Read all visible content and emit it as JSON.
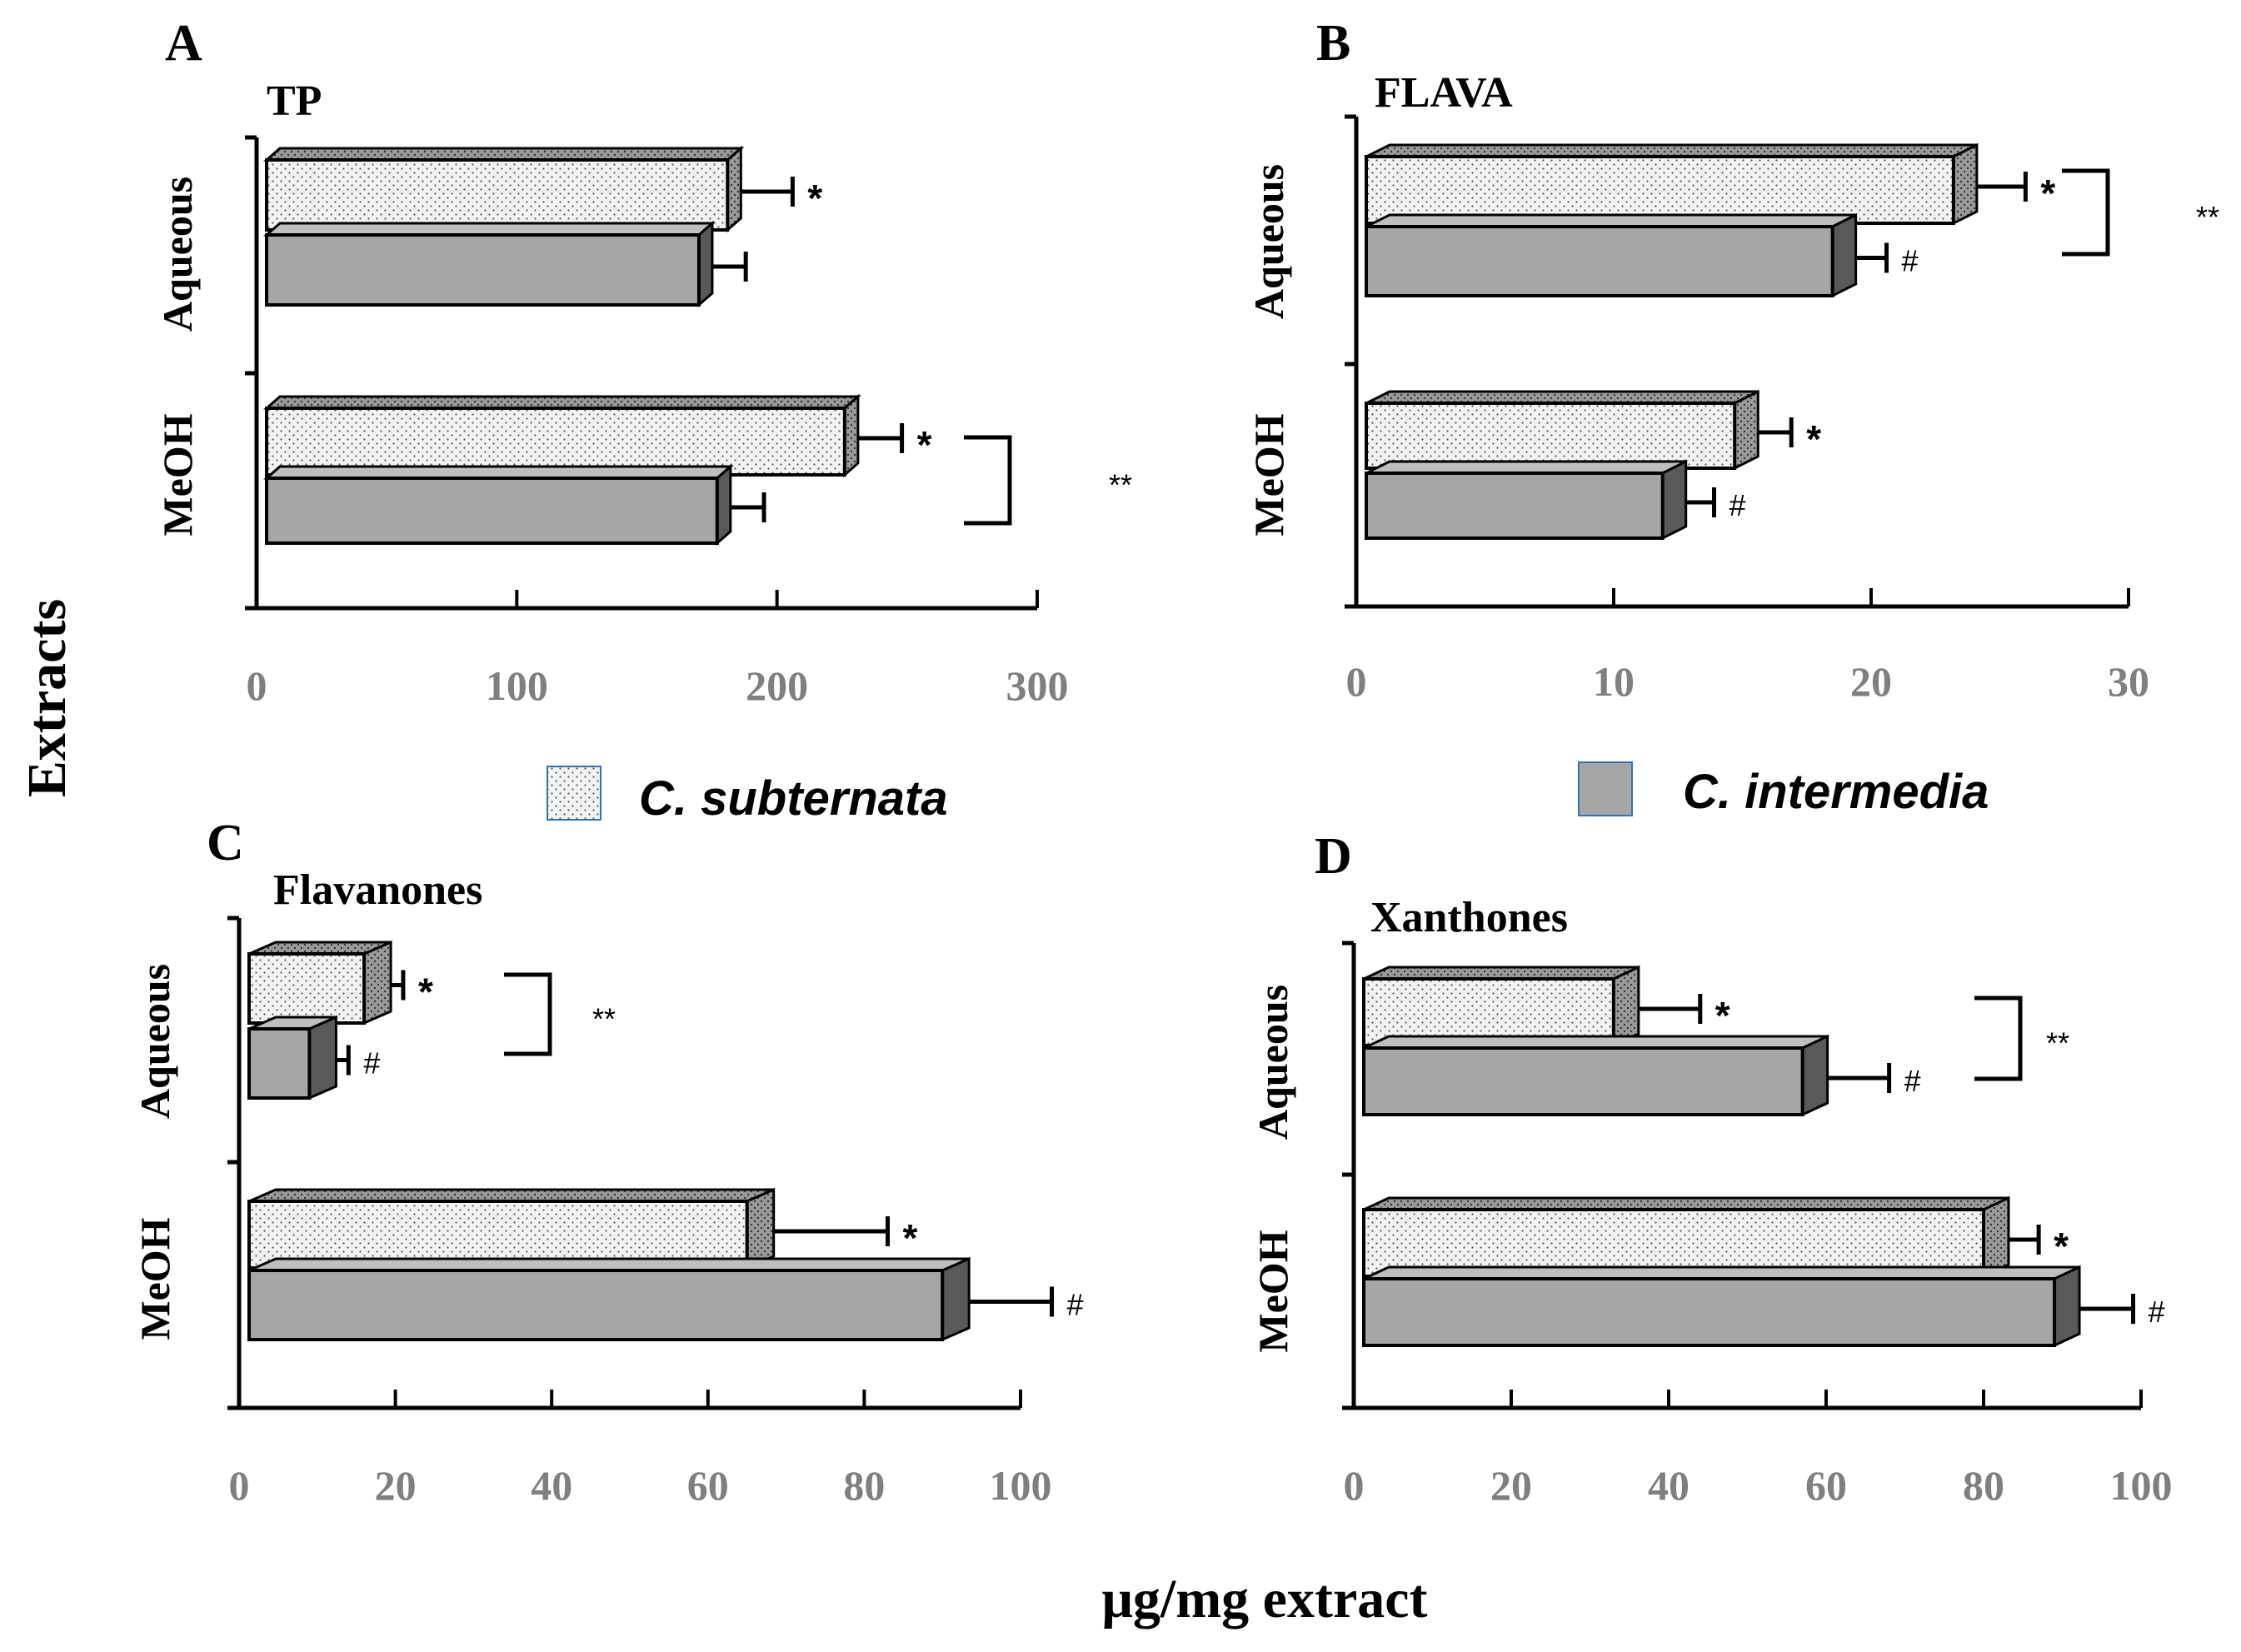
{
  "figure": {
    "y_axis_label": "Extracts",
    "x_axis_label": "μg/mg extract"
  },
  "legend": {
    "items": [
      {
        "name": "C. subternata",
        "pattern": "dotted",
        "color": "#f2f2f2"
      },
      {
        "name": "C. intermedia",
        "pattern": "solid",
        "color": "#a6a6a6"
      }
    ]
  },
  "colors": {
    "dotted_fill": "#f2f2f2",
    "solid_fill": "#a6a6a6",
    "solid_side": "#595959",
    "dotted_side": "#8c8c8c",
    "top_face": "#bfbfbf",
    "axis": "#000000",
    "tick_text": "#7f7f7f"
  },
  "chart_data": [
    {
      "panel": "A",
      "type": "bar",
      "orientation": "horizontal",
      "title": "TP",
      "categories": [
        "Aqueous",
        "MeOH"
      ],
      "xlim": [
        0,
        300
      ],
      "xticks": [
        0,
        100,
        200,
        300
      ],
      "series": [
        {
          "name": "C. subternata",
          "values": [
            181,
            226
          ],
          "errors": [
            25,
            22
          ],
          "marks": [
            "*",
            "*"
          ]
        },
        {
          "name": "C. intermedia",
          "values": [
            170,
            177
          ],
          "errors": [
            18,
            18
          ],
          "marks": [
            "",
            ""
          ]
        }
      ],
      "group_brackets": [
        {
          "category": "MeOH",
          "label": "**"
        }
      ]
    },
    {
      "panel": "B",
      "type": "bar",
      "orientation": "horizontal",
      "title": "FLAVA",
      "categories": [
        "Aqueous",
        "MeOH"
      ],
      "xlim": [
        0,
        30
      ],
      "xticks": [
        0,
        10,
        20,
        30
      ],
      "series": [
        {
          "name": "C. subternata",
          "values": [
            23.2,
            14.7
          ],
          "errors": [
            2.8,
            2.2
          ],
          "marks": [
            "*",
            "*"
          ]
        },
        {
          "name": "C. intermedia",
          "values": [
            18.5,
            11.9
          ],
          "errors": [
            2.1,
            2.0
          ],
          "marks": [
            "#",
            "#"
          ]
        }
      ],
      "group_brackets": [
        {
          "category": "Aqueous",
          "label": "**"
        }
      ]
    },
    {
      "panel": "C",
      "type": "bar",
      "orientation": "horizontal",
      "title": "Flavanones",
      "categories": [
        "Aqueous",
        "MeOH"
      ],
      "xlim": [
        0,
        100
      ],
      "xticks": [
        0,
        20,
        40,
        60,
        80,
        100
      ],
      "series": [
        {
          "name": "C. subternata",
          "values": [
            16,
            65
          ],
          "errors": [
            5,
            18
          ],
          "marks": [
            "*",
            "*"
          ]
        },
        {
          "name": "C. intermedia",
          "values": [
            9,
            90
          ],
          "errors": [
            5,
            14
          ],
          "marks": [
            "#",
            "#"
          ]
        }
      ],
      "group_brackets": [
        {
          "category": "Aqueous",
          "label": "**"
        }
      ]
    },
    {
      "panel": "D",
      "type": "bar",
      "orientation": "horizontal",
      "title": "Xanthones",
      "categories": [
        "Aqueous",
        "MeOH"
      ],
      "xlim": [
        0,
        100
      ],
      "xticks": [
        0,
        20,
        40,
        60,
        80,
        100
      ],
      "series": [
        {
          "name": "C. subternata",
          "values": [
            33,
            80
          ],
          "errors": [
            11,
            7
          ],
          "marks": [
            "*",
            "*"
          ]
        },
        {
          "name": "C. intermedia",
          "values": [
            57,
            89
          ],
          "errors": [
            11,
            10
          ],
          "marks": [
            "#",
            "#"
          ]
        }
      ],
      "group_brackets": [
        {
          "category": "Aqueous",
          "label": "**"
        }
      ]
    }
  ]
}
